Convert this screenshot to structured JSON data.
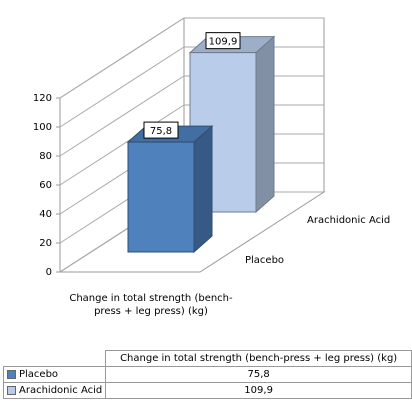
{
  "chart_data": {
    "type": "bar3d",
    "categories": [
      "Change in total strength (bench-press + leg press) (kg)"
    ],
    "series": [
      {
        "name": "Placebo",
        "color": "#4f81bd",
        "values": [
          75.8
        ],
        "value_labels": [
          "75,8"
        ]
      },
      {
        "name": "Arachidonic Acid",
        "color": "#b9cdeb",
        "values": [
          109.9
        ],
        "value_labels": [
          "109,9"
        ]
      }
    ],
    "ylim": [
      0,
      120
    ],
    "yticks": [
      0,
      20,
      40,
      60,
      80,
      100,
      120
    ],
    "grid": true
  }
}
